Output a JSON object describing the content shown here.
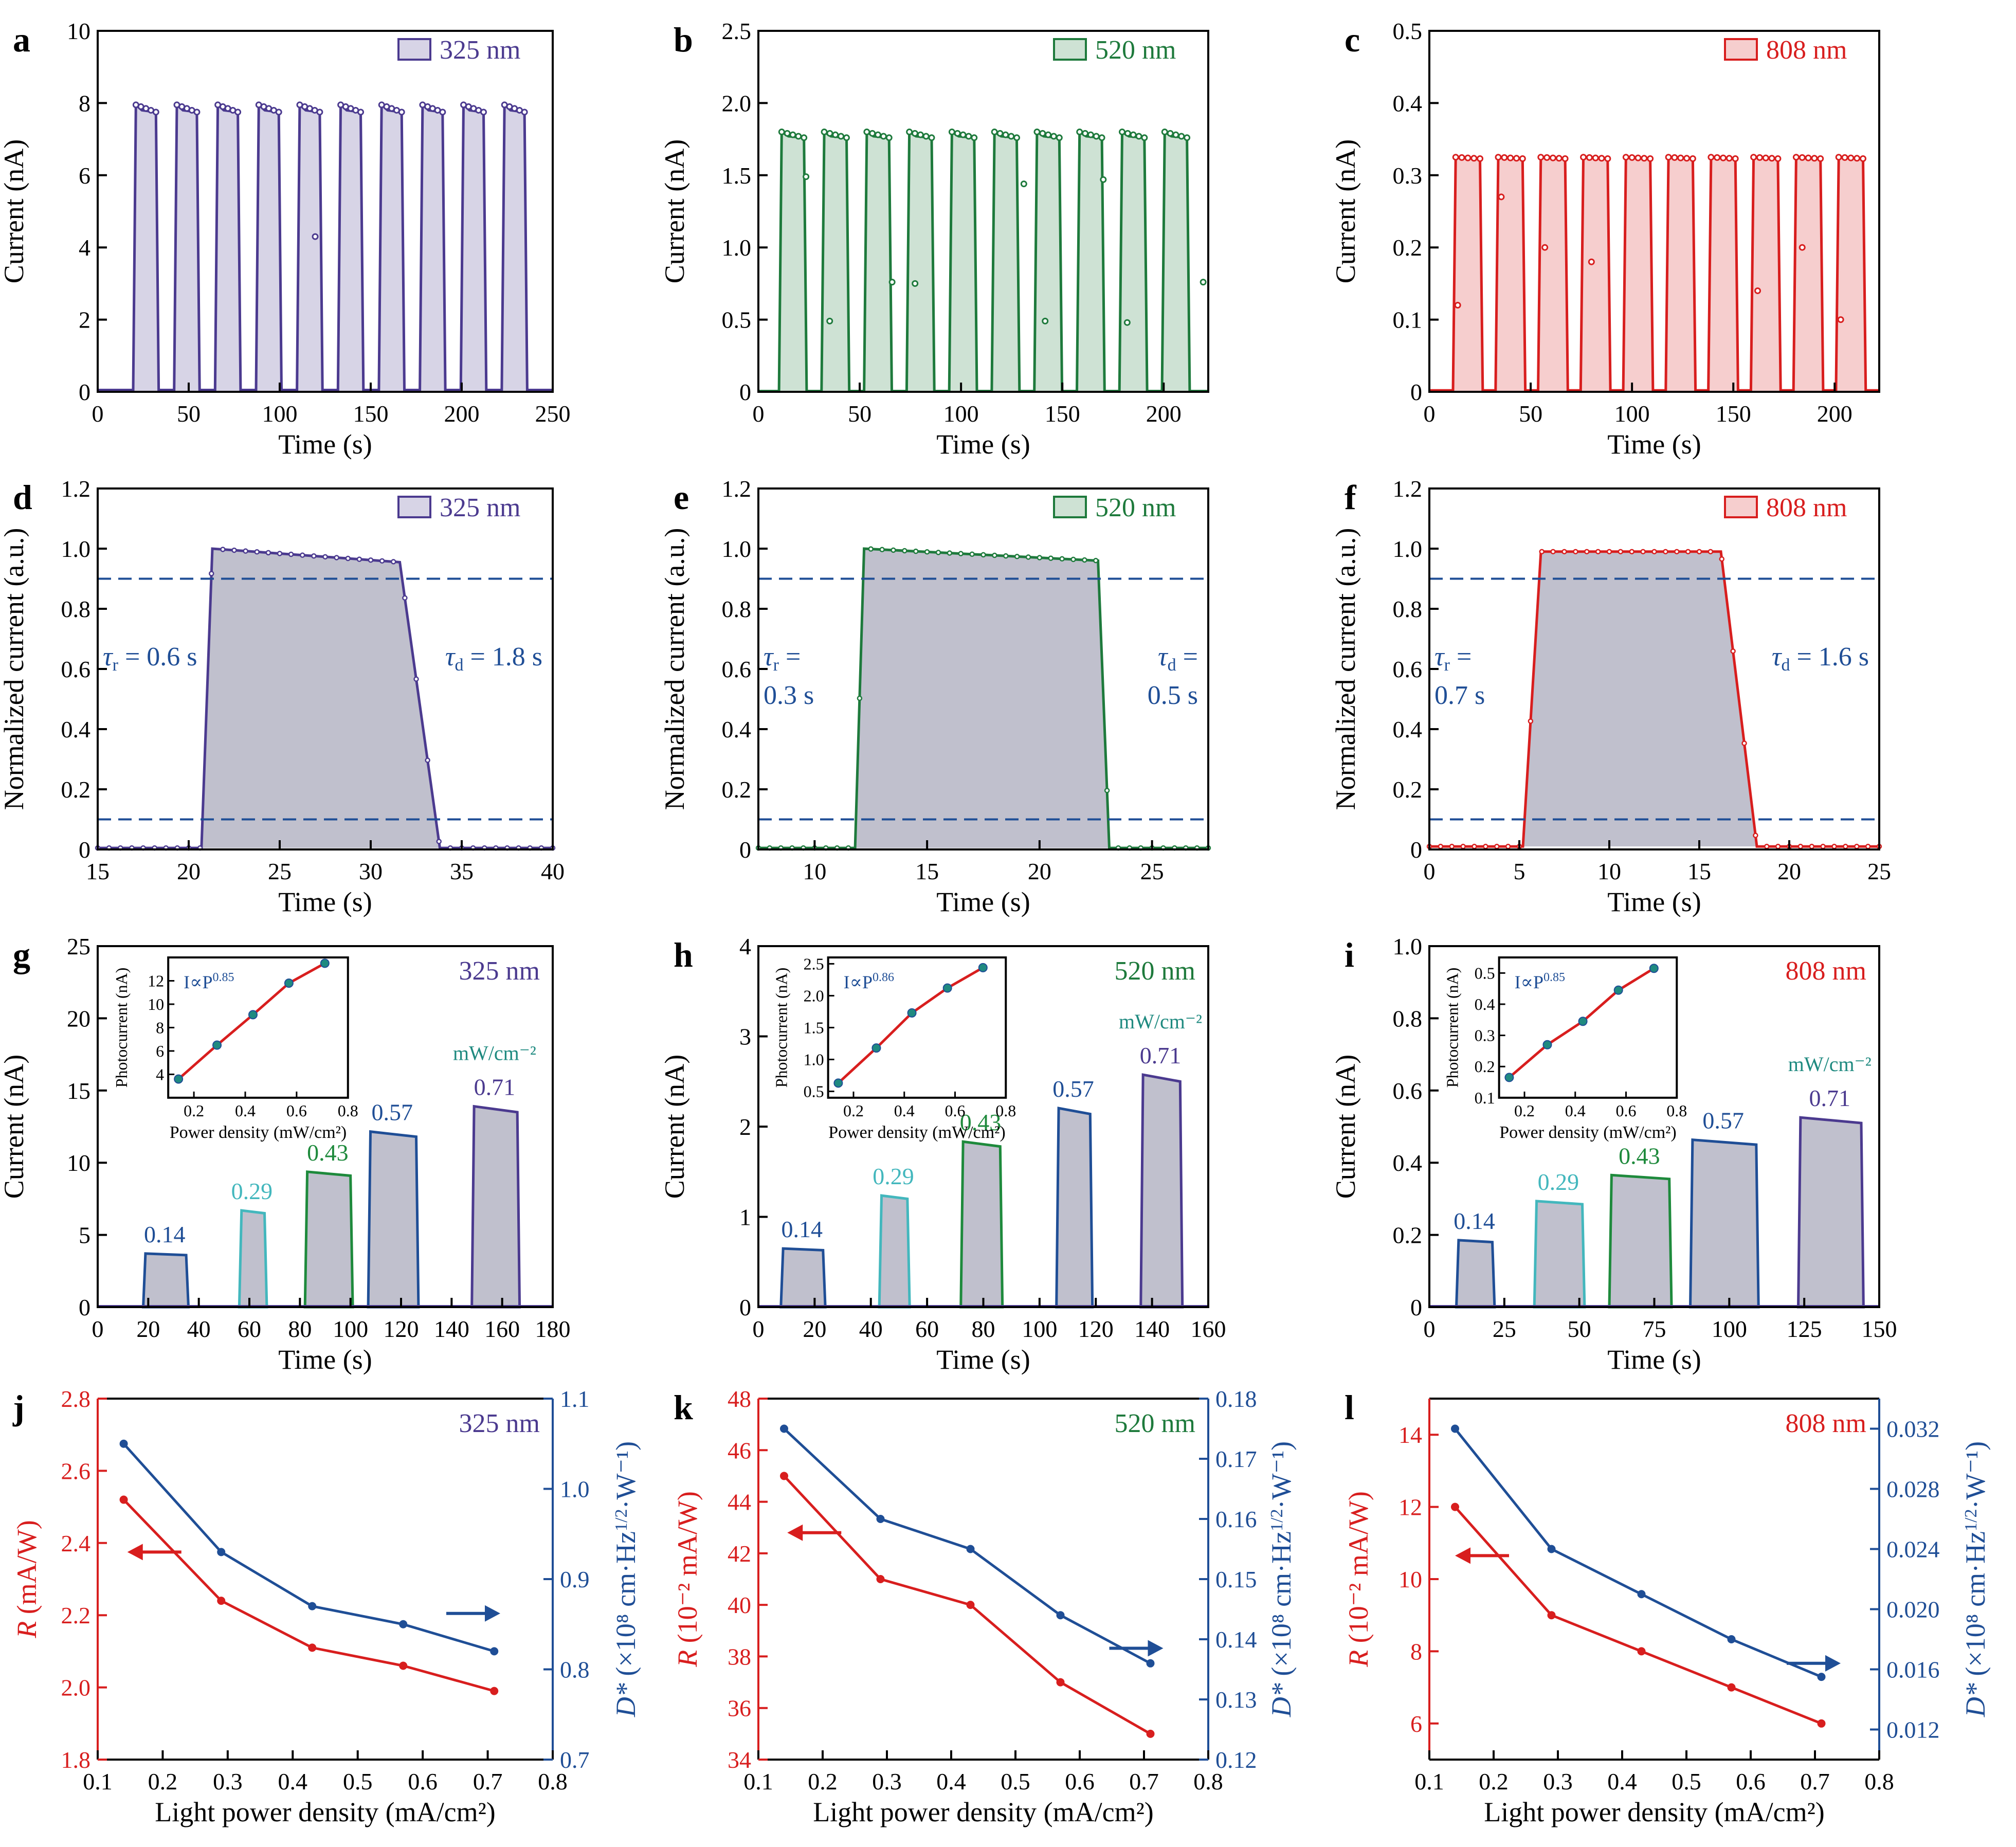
{
  "figure": {
    "colors": {
      "c325": "#4b3a8f",
      "c520": "#1e7a3c",
      "c808": "#d81e1e",
      "blue": "#1f4e96",
      "cyan": "#43b7bd",
      "green": "#1e8a3c",
      "teal": "#1f8a80",
      "dash": "#1f4e96",
      "fit": "#d81e1e",
      "grey": "#b9b9c8"
    }
  },
  "chart_data": [
    {
      "id": "a",
      "type": "area",
      "panel_label": "a",
      "xlabel": "Time (s)",
      "ylabel": "Current (nA)",
      "xlim": [
        0,
        250
      ],
      "ylim": [
        0,
        10
      ],
      "xticks": [
        0,
        50,
        100,
        150,
        200,
        250
      ],
      "yticks": [
        0,
        2,
        4,
        6,
        8,
        10
      ],
      "legend": "325 nm",
      "color": "c325",
      "pulses": {
        "starts": [
          21,
          43.5,
          66,
          88.5,
          111,
          133.5,
          156,
          178.5,
          201,
          223.5
        ],
        "width": 11,
        "on": [
          7.95,
          7.8,
          7.75
        ],
        "off": 0.05,
        "extra": [
          [
            6,
            119.5,
            4.3
          ]
        ]
      }
    },
    {
      "id": "b",
      "type": "area",
      "panel_label": "b",
      "xlabel": "Time (s)",
      "ylabel": "Current (nA)",
      "xlim": [
        0,
        222
      ],
      "ylim": [
        0,
        2.5
      ],
      "xticks": [
        0,
        50,
        100,
        150,
        200
      ],
      "yticks": [
        0,
        0.5,
        1.0,
        1.5,
        2.0,
        2.5
      ],
      "legend": "520 nm",
      "color": "c520",
      "pulses": {
        "starts": [
          11.5,
          32.5,
          53.5,
          74.5,
          95.5,
          116.5,
          137.5,
          158.5,
          179.5,
          200.5
        ],
        "width": 11,
        "on": [
          1.8,
          1.77,
          1.76
        ],
        "off": 0.005,
        "extra": [
          [
            0,
            23.5,
            1.49
          ],
          [
            1,
            35.2,
            0.49
          ],
          [
            2,
            66,
            0.76
          ],
          [
            3,
            77.3,
            0.75
          ],
          [
            5,
            131,
            1.44
          ],
          [
            6,
            141.5,
            0.49
          ],
          [
            7,
            170.2,
            1.47
          ],
          [
            8,
            182,
            0.48
          ],
          [
            9,
            219.5,
            0.76
          ]
        ]
      }
    },
    {
      "id": "c",
      "type": "area",
      "panel_label": "c",
      "xlabel": "Time (s)",
      "ylabel": "Current (nA)",
      "xlim": [
        0,
        222
      ],
      "ylim": [
        0,
        0.5
      ],
      "xticks": [
        0,
        50,
        100,
        150,
        200
      ],
      "yticks": [
        0,
        0.1,
        0.2,
        0.3,
        0.4,
        0.5
      ],
      "legend": "808 nm",
      "color": "c808",
      "pulses": {
        "starts": [
          13,
          34,
          55,
          76,
          97,
          118,
          139,
          160,
          181,
          202
        ],
        "width": 12,
        "on": [
          0.325,
          0.325,
          0.323
        ],
        "off": 0.002,
        "extra": [
          [
            0,
            14,
            0.12
          ],
          [
            1,
            35.5,
            0.27
          ],
          [
            2,
            57,
            0.2
          ],
          [
            3,
            80,
            0.18
          ],
          [
            7,
            162,
            0.14
          ],
          [
            8,
            184,
            0.2
          ],
          [
            9,
            203,
            0.1
          ]
        ]
      }
    },
    {
      "id": "d",
      "type": "area",
      "panel_label": "d",
      "xlabel": "Time (s)",
      "ylabel": "Normalized current (a.u.)",
      "xlim": [
        15,
        40
      ],
      "ylim": [
        0,
        1.2
      ],
      "xticks": [
        15,
        20,
        25,
        30,
        35,
        40
      ],
      "yticks": [
        0,
        0.2,
        0.4,
        0.6,
        0.8,
        1.0,
        1.2
      ],
      "legend": "325 nm",
      "color": "c325",
      "single": {
        "t0": 20.7,
        "t1": 21.3,
        "t2": 31.6,
        "t3": 33.8,
        "start": 1.0,
        "end": 0.955,
        "base": 0.005
      },
      "hlines": [
        0.9,
        0.1
      ],
      "tau_r": {
        "sym": "τ",
        "sub": "r",
        "val": "= 0.6 s"
      },
      "tau_d": {
        "sym": "τ",
        "sub": "d",
        "val": "= 1.8 s"
      }
    },
    {
      "id": "e",
      "type": "area",
      "panel_label": "e",
      "xlabel": "Time (s)",
      "ylabel": "Normalized current (a.u.)",
      "xlim": [
        7.5,
        27.5
      ],
      "ylim": [
        0,
        1.2
      ],
      "xticks": [
        10,
        15,
        20,
        25
      ],
      "yticks": [
        0,
        0.2,
        0.4,
        0.6,
        0.8,
        1.0,
        1.2
      ],
      "legend": "520 nm",
      "color": "c520",
      "single": {
        "t0": 11.8,
        "t1": 12.2,
        "t2": 22.6,
        "t3": 23.1,
        "start": 1.0,
        "end": 0.96,
        "base": 0.005
      },
      "hlines": [
        0.9,
        0.1
      ],
      "tau_r": {
        "sym": "τ",
        "sub": "r",
        "val": "=",
        "val2": "0.3 s"
      },
      "tau_d": {
        "sym": "τ",
        "sub": "d",
        "val": "=",
        "val2": "0.5 s"
      }
    },
    {
      "id": "f",
      "type": "area",
      "panel_label": "f",
      "xlabel": "Time (s)",
      "ylabel": "Normalized current (a.u.)",
      "xlim": [
        0,
        25
      ],
      "ylim": [
        0,
        1.2
      ],
      "xticks": [
        0,
        5,
        10,
        15,
        20,
        25
      ],
      "yticks": [
        0,
        0.2,
        0.4,
        0.6,
        0.8,
        1.0,
        1.2
      ],
      "legend": "808 nm",
      "color": "c808",
      "single": {
        "t0": 5.2,
        "t1": 6.2,
        "t2": 16.2,
        "t3": 18.2,
        "start": 0.99,
        "end": 0.99,
        "base": 0.01
      },
      "hlines": [
        0.9,
        0.1
      ],
      "tau_r": {
        "sym": "τ",
        "sub": "r",
        "val": "=",
        "val2": "0.7 s"
      },
      "tau_d": {
        "sym": "τ",
        "sub": "d",
        "val": "= 1.6 s"
      }
    },
    {
      "id": "g",
      "type": "area",
      "panel_label": "g",
      "xlabel": "Time (s)",
      "ylabel": "Current (nA)",
      "xlim": [
        0,
        180
      ],
      "ylim": [
        0,
        25
      ],
      "xticks": [
        0,
        20,
        40,
        60,
        80,
        100,
        120,
        140,
        160,
        180
      ],
      "yticks": [
        0,
        5,
        10,
        15,
        20,
        25
      ],
      "legend_text": "325 nm",
      "color": "c325",
      "steps": [
        {
          "t0": 18,
          "t1": 35,
          "v": 3.6,
          "color": "blue",
          "label": "0.14"
        },
        {
          "t0": 56,
          "t1": 66,
          "v": 6.5,
          "color": "cyan",
          "label": "0.29"
        },
        {
          "t0": 82,
          "t1": 100,
          "v": 9.1,
          "color": "green",
          "label": "0.43"
        },
        {
          "t0": 107,
          "t1": 126,
          "v": 11.8,
          "color": "blue",
          "label": "0.57"
        },
        {
          "t0": 148,
          "t1": 166,
          "v": 13.5,
          "color": "c325",
          "label": "0.71"
        }
      ],
      "unit": "mW/cm⁻²",
      "inset": {
        "xlabel": "Power density (mW/cm²)",
        "ylabel": "Photocurrent (nA)",
        "xlim": [
          0.1,
          0.8
        ],
        "ylim": [
          2,
          14
        ],
        "xticks": [
          0.2,
          0.4,
          0.6,
          0.8
        ],
        "yticks": [
          4,
          6,
          8,
          10,
          12
        ],
        "formula": "I∝P",
        "exponent": "0.85",
        "x": [
          0.14,
          0.29,
          0.43,
          0.57,
          0.71
        ],
        "y": [
          3.6,
          6.5,
          9.1,
          11.8,
          13.5
        ]
      }
    },
    {
      "id": "h",
      "type": "area",
      "panel_label": "h",
      "xlabel": "Time (s)",
      "ylabel": "Current (nA)",
      "xlim": [
        0,
        160
      ],
      "ylim": [
        0,
        4
      ],
      "xticks": [
        0,
        20,
        40,
        60,
        80,
        100,
        120,
        140,
        160
      ],
      "yticks": [
        0,
        1,
        2,
        3,
        4
      ],
      "legend_text": "520 nm",
      "color": "c520",
      "steps": [
        {
          "t0": 8,
          "t1": 23,
          "v": 0.63,
          "color": "blue",
          "label": "0.14"
        },
        {
          "t0": 43,
          "t1": 53,
          "v": 1.2,
          "color": "cyan",
          "label": "0.29"
        },
        {
          "t0": 72,
          "t1": 86,
          "v": 1.78,
          "color": "green",
          "label": "0.43"
        },
        {
          "t0": 106,
          "t1": 118,
          "v": 2.14,
          "color": "blue",
          "label": "0.57"
        },
        {
          "t0": 136,
          "t1": 150,
          "v": 2.5,
          "color": "c325",
          "label": "0.71"
        }
      ],
      "unit": "mW/cm⁻²",
      "inset": {
        "xlabel": "Power density (mW/cm²)",
        "ylabel": "Photocurrent (nA)",
        "xlim": [
          0.1,
          0.8
        ],
        "ylim": [
          0.4,
          2.6
        ],
        "xticks": [
          0.2,
          0.4,
          0.6,
          0.8
        ],
        "yticks": [
          0.5,
          1.0,
          1.5,
          2.0,
          2.5
        ],
        "formula": "I∝P",
        "exponent": "0.86",
        "x": [
          0.14,
          0.29,
          0.43,
          0.57,
          0.71
        ],
        "y": [
          0.63,
          1.18,
          1.73,
          2.12,
          2.44
        ]
      }
    },
    {
      "id": "i",
      "type": "area",
      "panel_label": "i",
      "xlabel": "Time (s)",
      "ylabel": "Current (nA)",
      "xlim": [
        0,
        150
      ],
      "ylim": [
        0,
        1.0
      ],
      "xticks": [
        0,
        25,
        50,
        75,
        100,
        125,
        150
      ],
      "yticks": [
        0,
        0.2,
        0.4,
        0.6,
        0.8,
        1.0
      ],
      "legend_text": "808 nm",
      "color": "c808",
      "steps": [
        {
          "t0": 9,
          "t1": 21,
          "v": 0.18,
          "color": "blue",
          "label": "0.14"
        },
        {
          "t0": 35,
          "t1": 51,
          "v": 0.285,
          "color": "cyan",
          "label": "0.29"
        },
        {
          "t0": 60,
          "t1": 80,
          "v": 0.355,
          "color": "green",
          "label": "0.43"
        },
        {
          "t0": 87,
          "t1": 109,
          "v": 0.45,
          "color": "blue",
          "label": "0.57"
        },
        {
          "t0": 123,
          "t1": 144,
          "v": 0.51,
          "color": "c325",
          "label": "0.71"
        }
      ],
      "unit": "mW/cm⁻²",
      "inset": {
        "xlabel": "Power density (mW/cm²)",
        "ylabel": "Photocurrent (nA)",
        "xlim": [
          0.1,
          0.8
        ],
        "ylim": [
          0.1,
          0.55
        ],
        "xticks": [
          0.2,
          0.4,
          0.6,
          0.8
        ],
        "yticks": [
          0.1,
          0.2,
          0.3,
          0.4,
          0.5
        ],
        "formula": "I∝P",
        "exponent": "0.85",
        "x": [
          0.14,
          0.29,
          0.43,
          0.57,
          0.71
        ],
        "y": [
          0.165,
          0.27,
          0.345,
          0.445,
          0.515
        ]
      }
    },
    {
      "id": "j",
      "type": "line",
      "panel_label": "j",
      "xlabel": "Light power density (mA/cm²)",
      "ylabel_left": {
        "sym": "R",
        "rest": " (mA/W)"
      },
      "ylabel_right": {
        "sym": "D*",
        "rest": " (×10⁸ cm·Hz",
        "sup": "1/2",
        "rest2": "·W⁻¹)"
      },
      "xlim": [
        0.1,
        0.8
      ],
      "ylim_left": [
        1.8,
        2.8
      ],
      "ylim_right": [
        0.7,
        1.1
      ],
      "xticks": [
        0.1,
        0.2,
        0.3,
        0.4,
        0.5,
        0.6,
        0.7,
        0.8
      ],
      "yticks_left": [
        1.8,
        2.0,
        2.2,
        2.4,
        2.6,
        2.8
      ],
      "yticks_right": [
        0.7,
        0.8,
        0.9,
        1.0,
        1.1
      ],
      "ytick_left_fmt": 1,
      "ytick_right_fmt": 1,
      "legend_text": "325 nm",
      "color": "c325",
      "x": [
        0.14,
        0.29,
        0.43,
        0.57,
        0.71
      ],
      "series": [
        {
          "axis": "left",
          "values": [
            2.52,
            2.24,
            2.11,
            2.06,
            1.99
          ]
        },
        {
          "axis": "right",
          "values": [
            1.05,
            0.93,
            0.87,
            0.85,
            0.82
          ]
        }
      ],
      "arrows": {
        "left": [
          0.205,
          2.375
        ],
        "right": [
          0.66,
          0.862
        ]
      }
    },
    {
      "id": "k",
      "type": "line",
      "panel_label": "k",
      "xlabel": "Light power density (mA/cm²)",
      "ylabel_left": {
        "sym": "R",
        "rest": " (10⁻² mA/W)"
      },
      "ylabel_right": {
        "sym": "D*",
        "rest": " (×10⁸ cm·Hz",
        "sup": "1/2",
        "rest2": "·W⁻¹)"
      },
      "xlim": [
        0.1,
        0.8
      ],
      "ylim_left": [
        34,
        48
      ],
      "ylim_right": [
        0.12,
        0.18
      ],
      "xticks": [
        0.1,
        0.2,
        0.3,
        0.4,
        0.5,
        0.6,
        0.7,
        0.8
      ],
      "yticks_left": [
        34,
        36,
        38,
        40,
        42,
        44,
        46,
        48
      ],
      "yticks_right": [
        0.12,
        0.13,
        0.14,
        0.15,
        0.16,
        0.17,
        0.18
      ],
      "ytick_left_fmt": 0,
      "ytick_right_fmt": 2,
      "legend_text": "520 nm",
      "color": "c520",
      "x": [
        0.14,
        0.29,
        0.43,
        0.57,
        0.71
      ],
      "series": [
        {
          "axis": "left",
          "values": [
            45,
            41,
            40,
            37,
            35
          ]
        },
        {
          "axis": "right",
          "values": [
            0.175,
            0.16,
            0.155,
            0.144,
            0.136
          ]
        }
      ],
      "arrows": {
        "left": [
          0.205,
          42.8
        ],
        "right": [
          0.67,
          0.1385
        ]
      }
    },
    {
      "id": "l",
      "type": "line",
      "panel_label": "l",
      "xlabel": "Light power density (mA/cm²)",
      "ylabel_left": {
        "sym": "R",
        "rest": " (10⁻² mA/W)"
      },
      "ylabel_right": {
        "sym": "D*",
        "rest": " (×10⁸ cm·Hz",
        "sup": "1/2",
        "rest2": "·W⁻¹)"
      },
      "xlim": [
        0.1,
        0.8
      ],
      "ylim_left": [
        5,
        15
      ],
      "ylim_right": [
        0.01,
        0.034
      ],
      "xticks": [
        0.1,
        0.2,
        0.3,
        0.4,
        0.5,
        0.6,
        0.7,
        0.8
      ],
      "yticks_left": [
        6,
        8,
        10,
        12,
        14
      ],
      "yticks_right": [
        0.012,
        0.016,
        0.02,
        0.024,
        0.028,
        0.032
      ],
      "ytick_left_fmt": 0,
      "ytick_right_fmt": 3,
      "legend_text": "808 nm",
      "color": "c808",
      "x": [
        0.14,
        0.29,
        0.43,
        0.57,
        0.71
      ],
      "series": [
        {
          "axis": "left",
          "values": [
            12,
            9,
            8,
            7,
            6
          ]
        },
        {
          "axis": "right",
          "values": [
            0.032,
            0.024,
            0.021,
            0.018,
            0.0155
          ]
        }
      ],
      "arrows": {
        "left": [
          0.2,
          10.65
        ],
        "right": [
          0.68,
          0.0164
        ]
      }
    }
  ]
}
